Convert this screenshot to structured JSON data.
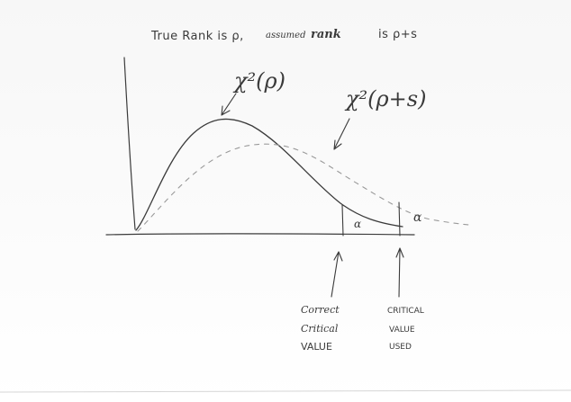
{
  "title": {
    "prefix": "True Rank is ρ,",
    "scribbled_word": "assumed",
    "scribbled_overwrite": "rank",
    "suffix": "is ρ+s"
  },
  "curves": {
    "chi_rho_label": "χ²(ρ)",
    "chi_rho_s_label": "χ²(ρ+s)"
  },
  "tails": {
    "alpha_correct": "α",
    "alpha_used": "α"
  },
  "annotations": {
    "correct_line1": "Correct",
    "correct_line2": "Critical",
    "correct_line3": "VALUE",
    "used_line1": "CRITICAL",
    "used_line2": "VALUE",
    "used_line3": "USED"
  },
  "colors": {
    "ink": "#3b3b3b",
    "dashed": "#9a9a9a",
    "paper": "#ffffff"
  }
}
